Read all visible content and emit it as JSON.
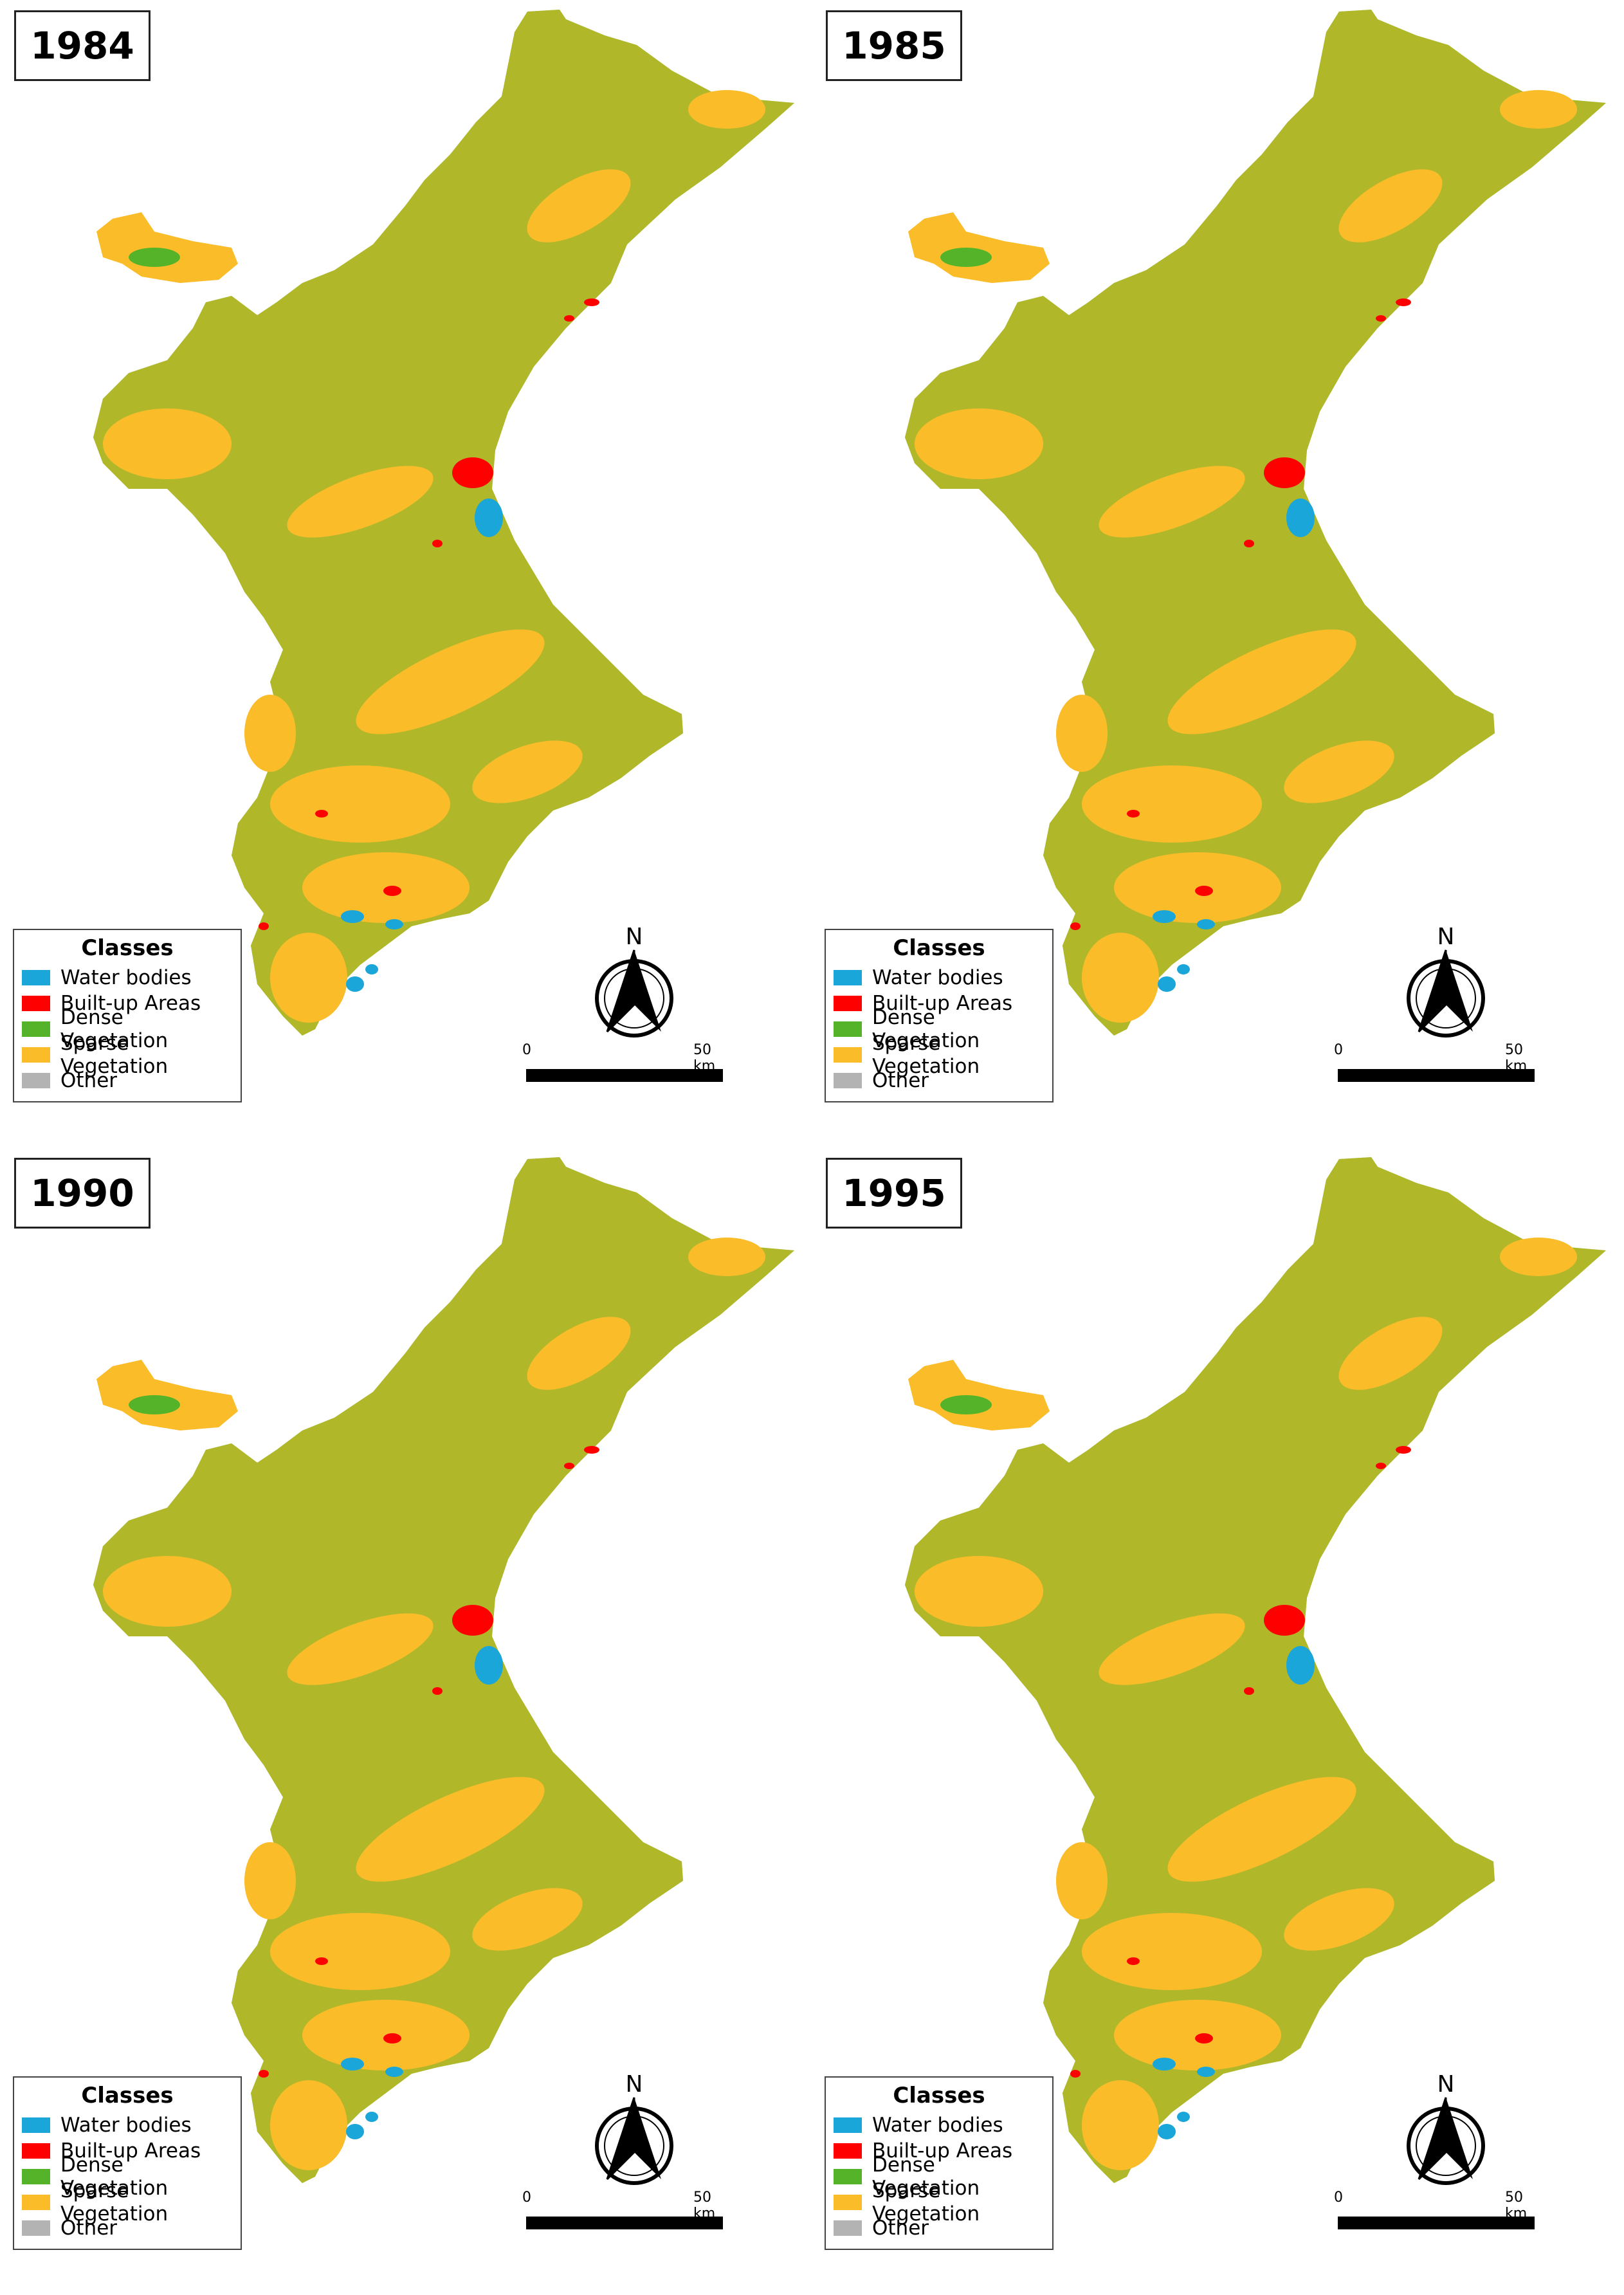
{
  "panels": [
    {
      "year": "1984"
    },
    {
      "year": "1985"
    },
    {
      "year": "1990"
    },
    {
      "year": "1995"
    }
  ],
  "legend": {
    "title": "Classes",
    "items": [
      {
        "label": "Water bodies",
        "color": "#1aa6d8"
      },
      {
        "label": "Built-up Areas",
        "color": "#ff0000"
      },
      {
        "label": "Dense Vegetation",
        "color": "#55b32a"
      },
      {
        "label": "Sparse Vegetation",
        "color": "#fbbc2a"
      },
      {
        "label": "Other",
        "color": "#b3b3b3"
      }
    ]
  },
  "north_arrow": {
    "label": "N"
  },
  "scale_bar": {
    "start_label": "0",
    "end_label": "50 km"
  }
}
